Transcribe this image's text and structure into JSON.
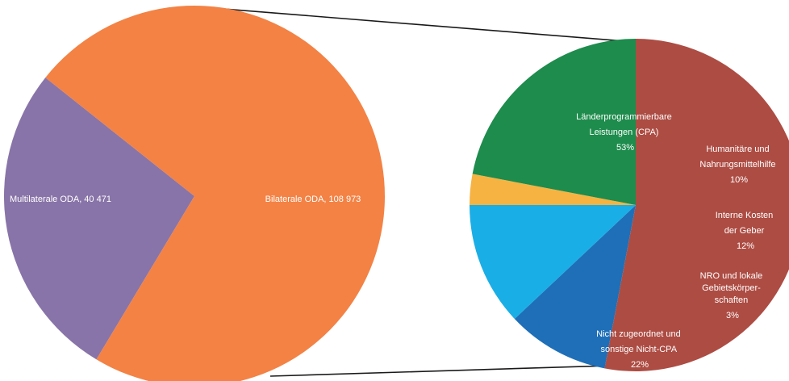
{
  "chart_data": [
    {
      "type": "pie",
      "title": "",
      "slices": [
        {
          "label": "Multilaterale ODA",
          "value": 40471,
          "display": "Multilaterale ODA, 40 471",
          "color": "#8874a8"
        },
        {
          "label": "Bilaterale ODA",
          "value": 108973,
          "display": "Bilaterale ODA, 108 973",
          "color": "#f38244"
        }
      ]
    },
    {
      "type": "pie",
      "title": "",
      "slices": [
        {
          "label": "Länderprogrammierbare Leistungen (CPA)",
          "value": 53,
          "lines": [
            "Länderprogrammierbare",
            "Leistungen (CPA)",
            "53%"
          ],
          "color": "#ad4c43"
        },
        {
          "label": "Humanitäre und Nahrungsmittelhilfe",
          "value": 10,
          "lines": [
            "Humanitäre und",
            "Nahrungsmittelhilfe",
            "10%"
          ],
          "color": "#1e6fb8"
        },
        {
          "label": "Interne Kosten der Geber",
          "value": 12,
          "lines": [
            "Interne Kosten",
            "der Geber",
            "12%"
          ],
          "color": "#1aaee6"
        },
        {
          "label": "NRO und lokale Gebietskörperschaften",
          "value": 3,
          "lines": [
            "NRO und lokale",
            "Gebietskörper-",
            "schaften",
            "3%"
          ],
          "color": "#f6b342"
        },
        {
          "label": "Nicht zugeordnet und sonstige Nicht-CPA",
          "value": 22,
          "lines": [
            "Nicht zugeordnet und",
            "sonstige Nicht-CPA",
            "22%"
          ],
          "color": "#1d8c4c"
        }
      ]
    }
  ]
}
